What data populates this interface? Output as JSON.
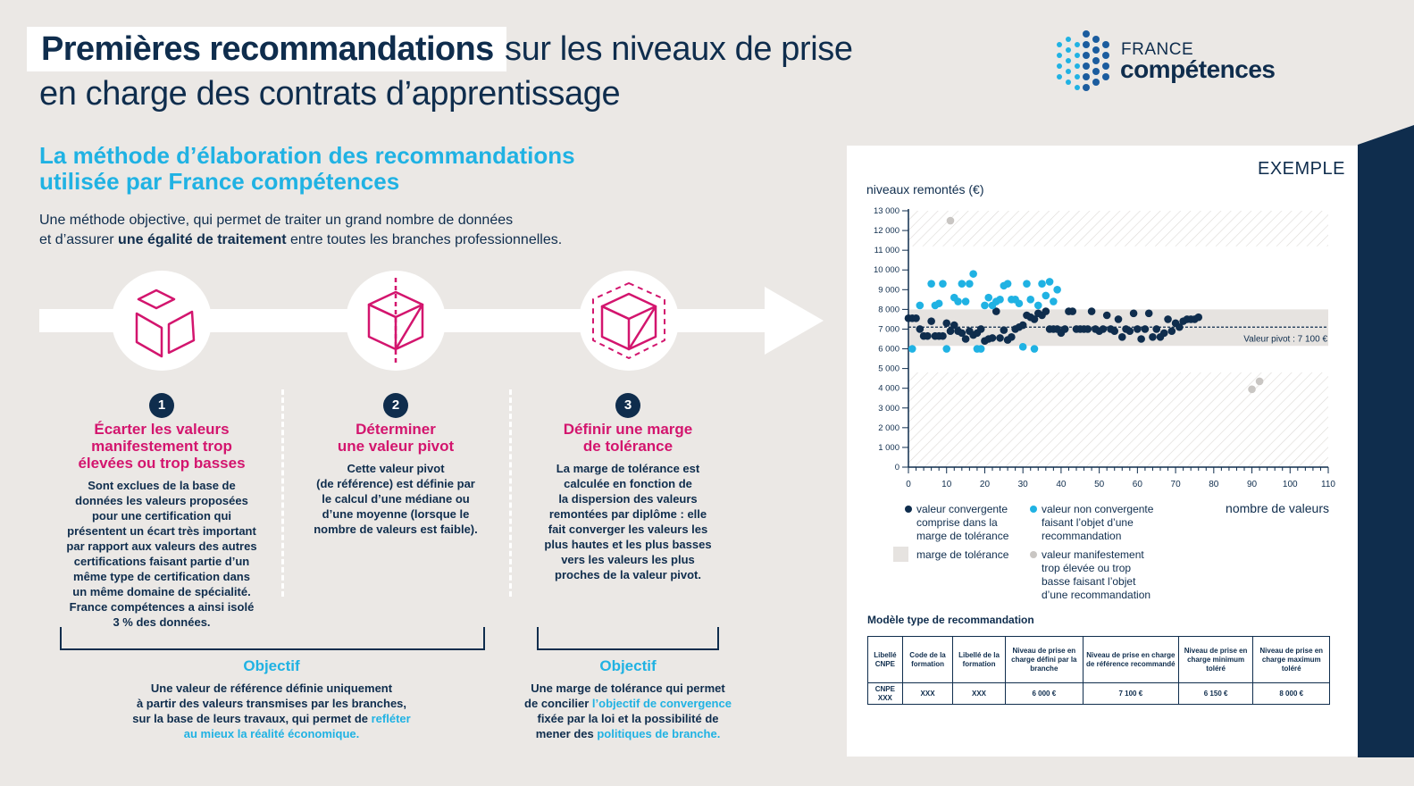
{
  "title": {
    "bold": "Premières recommandations",
    "rest": "sur les niveaux de prise",
    "line2": "en charge des contrats d’apprentissage"
  },
  "logo": {
    "line1": "FRANCE",
    "line2": "compétences"
  },
  "section": {
    "title_line1": "La méthode d’élaboration des recommandations",
    "title_line2": "utilisée par France compétences",
    "intro_line1": "Une méthode objective, qui permet de traiter un grand nombre de données",
    "intro_line2_pre": "et d’assurer ",
    "intro_line2_bold": "une égalité de traitement",
    "intro_line2_post": " entre toutes les branches professionnelles."
  },
  "steps": [
    {
      "number": "1",
      "title": [
        "Écarter les valeurs",
        "manifestement trop",
        "élevées ou trop basses"
      ],
      "body": [
        "Sont exclues de la base de",
        "données les valeurs proposées",
        "pour une certification qui",
        "présentent un écart très important",
        "par rapport aux valeurs des autres",
        "certifications faisant partie d’un",
        "même type de certification dans",
        "un même domaine de spécialité.",
        "France compétences a ainsi isolé",
        "3 % des données."
      ]
    },
    {
      "number": "2",
      "title": [
        "Déterminer",
        "une valeur pivot"
      ],
      "body": [
        "Cette valeur pivot",
        "(de référence) est définie par",
        "le calcul d’une médiane ou",
        "d’une moyenne (lorsque le",
        "nombre de valeurs est faible)."
      ]
    },
    {
      "number": "3",
      "title": [
        "Définir une marge",
        "de tolérance"
      ],
      "body": [
        "La marge de tolérance est",
        "calculée en fonction de",
        "la dispersion des valeurs",
        "remontées par diplôme : elle",
        "fait converger les valeurs les",
        "plus hautes et les plus basses",
        "vers les valeurs les plus",
        "proches de la valeur pivot."
      ]
    }
  ],
  "objectives": [
    {
      "title": "Objectif",
      "line1": "Une valeur de référence définie uniquement",
      "line2": "à partir des valeurs transmises par les branches,",
      "line3_pre": "sur la base de leurs travaux, qui permet de ",
      "line3_hl": "refléter",
      "line4_hl": "au mieux la réalité économique."
    },
    {
      "title": "Objectif",
      "line1": "Une marge de tolérance qui permet",
      "line2_pre": "de concilier ",
      "line2_hl": "l’objectif de convergence",
      "line3": "fixée par la loi et la possibilité de",
      "line4_pre": "mener des ",
      "line4_hl": "politiques de branche."
    }
  ],
  "panel": {
    "exemple": "EXEMPLE",
    "legend": {
      "convergent": [
        "valeur convergente",
        "comprise dans la",
        "marge de tolérance"
      ],
      "non_convergent": [
        "valeur non convergente",
        "faisant l’objet d’une",
        "recommandation"
      ],
      "margin": "marge de tolérance",
      "excluded": [
        "valeur manifestement",
        "trop élevée ou trop",
        "basse faisant l’objet",
        "d’une recommandation"
      ]
    },
    "model_title": "Modèle type de recommandation",
    "table": {
      "headers": [
        "Libellé CNPE",
        "Code de la formation",
        "Libellé de la formation",
        "Niveau de prise en charge défini par la branche",
        "Niveau de prise en charge de référence recommandé",
        "Niveau de prise en charge minimum toléré",
        "Niveau de prise en charge maximum toléré"
      ],
      "row": [
        "CNPE XXX",
        "XXX",
        "XXX",
        "6 000 €",
        "7 100 €",
        "6 150 €",
        "8 000 €"
      ]
    }
  },
  "colors": {
    "navy": "#0f2d4d",
    "cyan": "#20b2e3",
    "magenta": "#d3156e",
    "grey_dot": "#c9c6c3",
    "band": "#e6e3e0"
  },
  "chart_data": {
    "type": "scatter",
    "ylabel": "niveaux remontés (€)",
    "xlabel": "nombre de valeurs",
    "xlim": [
      0,
      110
    ],
    "ylim": [
      0,
      13000
    ],
    "xticks": [
      0,
      10,
      20,
      30,
      40,
      50,
      60,
      70,
      80,
      90,
      100,
      110
    ],
    "yticks": [
      0,
      1000,
      2000,
      3000,
      4000,
      5000,
      6000,
      7000,
      8000,
      9000,
      10000,
      11000,
      12000,
      13000
    ],
    "ytick_labels": [
      "0",
      "1 000",
      "2 000",
      "3 000",
      "4 000",
      "5 000",
      "6 000",
      "7 000",
      "8 000",
      "9 000",
      "10 000",
      "11 000",
      "12 000",
      "13 000"
    ],
    "pivot": {
      "value": 7100,
      "label": "Valeur pivot : 7 100 €"
    },
    "tolerance_band": [
      6150,
      8000
    ],
    "excluded_zones": [
      [
        11200,
        13000
      ],
      [
        0,
        4800
      ]
    ],
    "series": [
      {
        "key": "convergent",
        "color": "#0f2d4d",
        "points": [
          [
            0,
            7550
          ],
          [
            1,
            7550
          ],
          [
            2,
            7550
          ],
          [
            3,
            7000
          ],
          [
            4,
            6650
          ],
          [
            5,
            6650
          ],
          [
            6,
            7400
          ],
          [
            7,
            6650
          ],
          [
            8,
            6650
          ],
          [
            9,
            6650
          ],
          [
            10,
            7300
          ],
          [
            11,
            6900
          ],
          [
            12,
            7200
          ],
          [
            13,
            6900
          ],
          [
            14,
            6800
          ],
          [
            15,
            6500
          ],
          [
            16,
            6900
          ],
          [
            17,
            6700
          ],
          [
            18,
            6800
          ],
          [
            19,
            7000
          ],
          [
            20,
            6400
          ],
          [
            21,
            6500
          ],
          [
            22,
            6550
          ],
          [
            23,
            7900
          ],
          [
            24,
            6550
          ],
          [
            25,
            6950
          ],
          [
            26,
            6450
          ],
          [
            27,
            6600
          ],
          [
            28,
            7000
          ],
          [
            29,
            7100
          ],
          [
            30,
            7200
          ],
          [
            31,
            7700
          ],
          [
            32,
            7600
          ],
          [
            33,
            7500
          ],
          [
            34,
            7800
          ],
          [
            35,
            7700
          ],
          [
            36,
            7900
          ],
          [
            37,
            7000
          ],
          [
            38,
            7000
          ],
          [
            39,
            7000
          ],
          [
            40,
            6800
          ],
          [
            41,
            7000
          ],
          [
            42,
            7900
          ],
          [
            43,
            7900
          ],
          [
            44,
            7000
          ],
          [
            45,
            7000
          ],
          [
            46,
            7000
          ],
          [
            47,
            7000
          ],
          [
            48,
            7900
          ],
          [
            49,
            7000
          ],
          [
            50,
            6900
          ],
          [
            51,
            7000
          ],
          [
            52,
            7700
          ],
          [
            53,
            7000
          ],
          [
            54,
            6900
          ],
          [
            55,
            7500
          ],
          [
            56,
            6600
          ],
          [
            57,
            7000
          ],
          [
            58,
            6900
          ],
          [
            59,
            7800
          ],
          [
            60,
            7000
          ],
          [
            61,
            6500
          ],
          [
            62,
            7000
          ],
          [
            63,
            7800
          ],
          [
            64,
            6600
          ],
          [
            65,
            7000
          ],
          [
            66,
            6600
          ],
          [
            67,
            6800
          ],
          [
            68,
            7500
          ],
          [
            69,
            6900
          ],
          [
            70,
            7300
          ],
          [
            71,
            7100
          ],
          [
            72,
            7400
          ],
          [
            73,
            7500
          ],
          [
            74,
            7500
          ],
          [
            75,
            7500
          ],
          [
            76,
            7600
          ]
        ]
      },
      {
        "key": "non_convergent",
        "color": "#20b2e3",
        "points": [
          [
            1,
            6000
          ],
          [
            3,
            8200
          ],
          [
            6,
            9300
          ],
          [
            7,
            8200
          ],
          [
            8,
            8300
          ],
          [
            9,
            9300
          ],
          [
            10,
            6000
          ],
          [
            12,
            8600
          ],
          [
            13,
            8400
          ],
          [
            14,
            9300
          ],
          [
            15,
            8400
          ],
          [
            16,
            9300
          ],
          [
            17,
            9800
          ],
          [
            18,
            6000
          ],
          [
            19,
            6000
          ],
          [
            20,
            8200
          ],
          [
            21,
            8600
          ],
          [
            22,
            8200
          ],
          [
            23,
            8400
          ],
          [
            24,
            8500
          ],
          [
            25,
            9200
          ],
          [
            26,
            9300
          ],
          [
            27,
            8500
          ],
          [
            28,
            8500
          ],
          [
            29,
            8300
          ],
          [
            30,
            6100
          ],
          [
            31,
            9300
          ],
          [
            32,
            8500
          ],
          [
            33,
            6000
          ],
          [
            34,
            8200
          ],
          [
            35,
            9300
          ],
          [
            36,
            8700
          ],
          [
            37,
            9400
          ],
          [
            38,
            8400
          ],
          [
            39,
            9000
          ]
        ]
      },
      {
        "key": "excluded",
        "color": "#c9c6c3",
        "points": [
          [
            11,
            12500
          ],
          [
            90,
            3950
          ],
          [
            92,
            4350
          ]
        ]
      }
    ]
  }
}
